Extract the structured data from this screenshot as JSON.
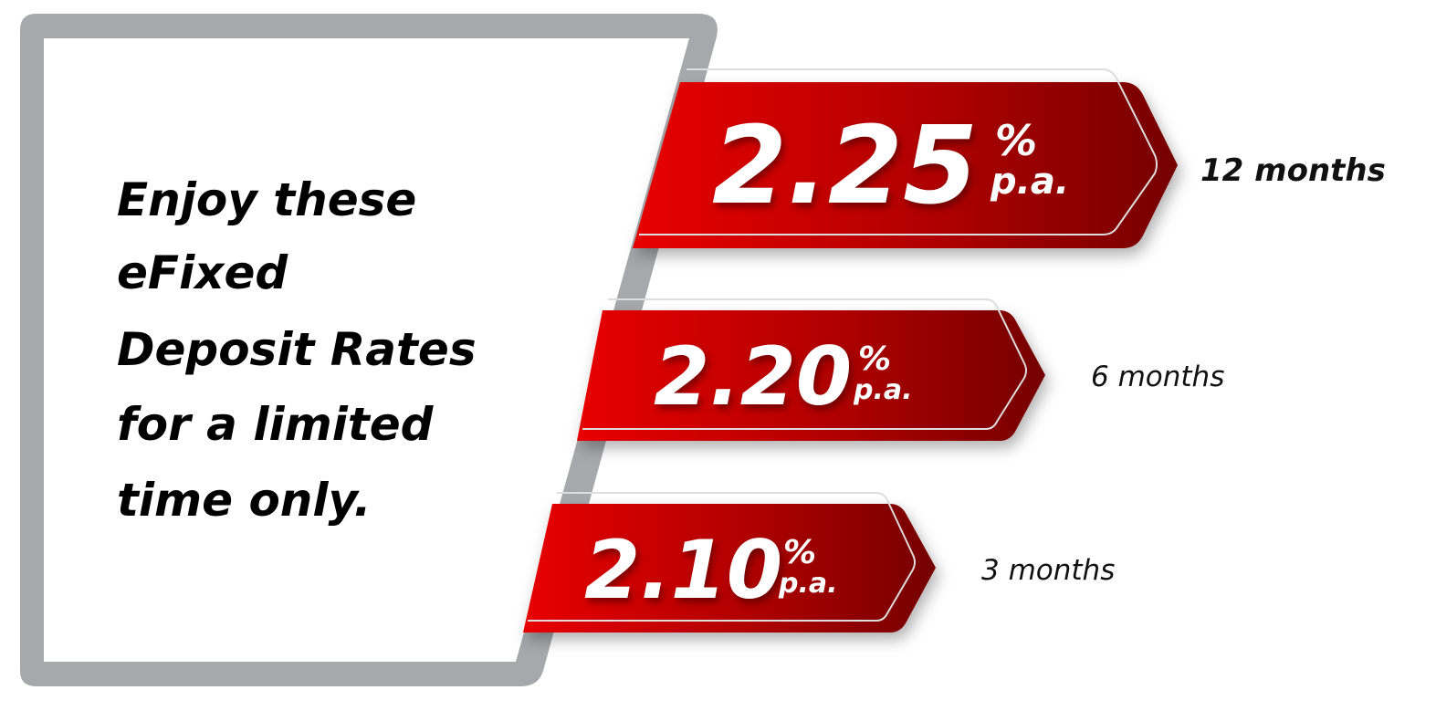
{
  "headline": {
    "lines": [
      "Enjoy these",
      "eFixed",
      "Deposit Rates",
      "for a limited",
      "time only."
    ]
  },
  "rates": [
    {
      "value": "2.25",
      "percent": "%",
      "unit": "p.a.",
      "term": "12 months"
    },
    {
      "value": "2.20",
      "percent": "%",
      "unit": "p.a.",
      "term": "6 months"
    },
    {
      "value": "2.10",
      "percent": "%",
      "unit": "p.a.",
      "term": "3 months"
    }
  ],
  "colors": {
    "frame": "#a7a8ab",
    "ribbon_light": "#e60000",
    "ribbon_dark": "#7a0000",
    "text": "#000000"
  }
}
